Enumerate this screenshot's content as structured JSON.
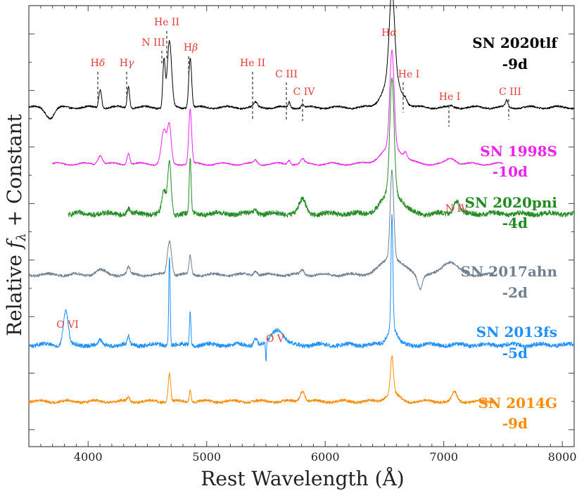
{
  "chart_data": {
    "type": "line",
    "xlabel": "Rest Wavelength (Å)",
    "ylabel": "Relative fλ + Constant",
    "xlim": [
      3500,
      8100
    ],
    "xticks": [
      4000,
      5000,
      6000,
      7000,
      8000
    ],
    "xticklabels": [
      "4000",
      "5000",
      "6000",
      "7000",
      "8000"
    ],
    "series": [
      {
        "name": "SN 2020tlf",
        "phase": "-9d",
        "color": "#000000",
        "x_range": [
          3500,
          8100
        ],
        "baseline": 1.65,
        "noise": 0.008,
        "amp": 1.0,
        "lines": [
          {
            "w": 3680,
            "a": -0.09,
            "s": 35
          },
          {
            "w": 4102,
            "a": 0.16,
            "s": 12
          },
          {
            "w": 4340,
            "a": 0.19,
            "s": 10
          },
          {
            "w": 4640,
            "a": 0.42,
            "s": 10
          },
          {
            "w": 4686,
            "a": 0.58,
            "s": 18
          },
          {
            "w": 4861,
            "a": 0.44,
            "s": 12
          },
          {
            "w": 5411,
            "a": 0.04,
            "s": 15
          },
          {
            "w": 5696,
            "a": 0.05,
            "s": 8
          },
          {
            "w": 5808,
            "a": 0.03,
            "s": 10
          },
          {
            "w": 6563,
            "a": 0.75,
            "s": 22
          },
          {
            "w": 6563,
            "a": 0.28,
            "s": 70
          },
          {
            "w": 6678,
            "a": 0.03,
            "s": 10
          },
          {
            "w": 7065,
            "a": 0.01,
            "s": 10
          },
          {
            "w": 7530,
            "a": 0.06,
            "s": 10
          }
        ]
      },
      {
        "name": "SN 1998S",
        "phase": "-10d",
        "color": "#ee22ee",
        "x_range": [
          3700,
          7500
        ],
        "baseline": 1.15,
        "noise": 0.006,
        "amp": 1.0,
        "lines": [
          {
            "w": 4102,
            "a": 0.08,
            "s": 20
          },
          {
            "w": 4340,
            "a": 0.1,
            "s": 12
          },
          {
            "w": 4640,
            "a": 0.3,
            "s": 22
          },
          {
            "w": 4686,
            "a": 0.32,
            "s": 15
          },
          {
            "w": 4861,
            "a": 0.48,
            "s": 12
          },
          {
            "w": 5411,
            "a": 0.03,
            "s": 15
          },
          {
            "w": 5696,
            "a": 0.04,
            "s": 12
          },
          {
            "w": 5808,
            "a": 0.04,
            "s": 15
          },
          {
            "w": 6563,
            "a": 0.85,
            "s": 18
          },
          {
            "w": 6563,
            "a": 0.15,
            "s": 90
          },
          {
            "w": 6678,
            "a": 0.05,
            "s": 12
          },
          {
            "w": 7065,
            "a": 0.05,
            "s": 40
          }
        ]
      },
      {
        "name": "SN 2020pni",
        "phase": "-4d",
        "color": "#228b22",
        "x_range": [
          3830,
          8100
        ],
        "baseline": 0.71,
        "noise": 0.022,
        "amp": 1.0,
        "lines": [
          {
            "w": 4340,
            "a": 0.05,
            "s": 12
          },
          {
            "w": 4640,
            "a": 0.2,
            "s": 18
          },
          {
            "w": 4686,
            "a": 0.45,
            "s": 14
          },
          {
            "w": 4861,
            "a": 0.48,
            "s": 8
          },
          {
            "w": 5411,
            "a": 0.04,
            "s": 15
          },
          {
            "w": 5808,
            "a": 0.12,
            "s": 30
          },
          {
            "w": 6563,
            "a": 1.0,
            "s": 18
          },
          {
            "w": 6563,
            "a": 0.2,
            "s": 80
          },
          {
            "w": 7109,
            "a": 0.12,
            "s": 25
          }
        ]
      },
      {
        "name": "SN 2017ahn",
        "phase": "-2d",
        "color": "#708090",
        "x_range": [
          3500,
          7420
        ],
        "baseline": 0.17,
        "noise": 0.012,
        "amp": 1.0,
        "lines": [
          {
            "w": 4102,
            "a": 0.04,
            "s": 40
          },
          {
            "w": 4340,
            "a": 0.07,
            "s": 12
          },
          {
            "w": 4686,
            "a": 0.3,
            "s": 18
          },
          {
            "w": 4861,
            "a": 0.16,
            "s": 10
          },
          {
            "w": 5411,
            "a": 0.04,
            "s": 15
          },
          {
            "w": 5808,
            "a": 0.04,
            "s": 15
          },
          {
            "w": 6563,
            "a": 0.78,
            "s": 15
          },
          {
            "w": 6563,
            "a": 0.15,
            "s": 90
          },
          {
            "w": 6800,
            "a": -0.12,
            "s": 20
          },
          {
            "w": 7050,
            "a": 0.12,
            "s": 60
          }
        ]
      },
      {
        "name": "SN 2013fs",
        "phase": "-5d",
        "color": "#1e90ff",
        "x_range": [
          3500,
          8100
        ],
        "baseline": -0.45,
        "noise": 0.018,
        "amp": 1.0,
        "lines": [
          {
            "w": 3811,
            "a": 0.3,
            "s": 20
          },
          {
            "w": 4102,
            "a": 0.04,
            "s": 10
          },
          {
            "w": 4340,
            "a": 0.07,
            "s": 10
          },
          {
            "w": 4686,
            "a": 0.8,
            "s": 6
          },
          {
            "w": 4861,
            "a": 0.3,
            "s": 6
          },
          {
            "w": 5411,
            "a": 0.06,
            "s": 15
          },
          {
            "w": 5597,
            "a": 0.14,
            "s": 50
          },
          {
            "w": 5500,
            "a": -0.18,
            "s": 4
          },
          {
            "w": 6563,
            "a": 1.0,
            "s": 8
          },
          {
            "w": 6563,
            "a": 0.15,
            "s": 40
          }
        ]
      },
      {
        "name": "SN 2014G",
        "phase": "-9d",
        "color": "#ff8c00",
        "x_range": [
          3500,
          7420
        ],
        "baseline": -0.95,
        "noise": 0.012,
        "amp": 1.0,
        "lines": [
          {
            "w": 4340,
            "a": 0.04,
            "s": 10
          },
          {
            "w": 4686,
            "a": 0.25,
            "s": 10
          },
          {
            "w": 4861,
            "a": 0.1,
            "s": 8
          },
          {
            "w": 5808,
            "a": 0.1,
            "s": 20
          },
          {
            "w": 6563,
            "a": 0.32,
            "s": 12
          },
          {
            "w": 6563,
            "a": 0.08,
            "s": 50
          },
          {
            "w": 7090,
            "a": 0.08,
            "s": 20
          }
        ]
      }
    ]
  },
  "labels": {
    "line_ids": [
      {
        "text": "Hδ",
        "w": 4102
      },
      {
        "text": "Hγ",
        "w": 4340
      },
      {
        "text": "N III",
        "w": 4640
      },
      {
        "text": "He II",
        "w": 4686
      },
      {
        "text": "Hβ",
        "w": 4861
      },
      {
        "text": "He II",
        "w": 5411
      },
      {
        "text": "C III",
        "w": 5696
      },
      {
        "text": "C IV",
        "w": 5808
      },
      {
        "text": "Hα",
        "w": 6563
      },
      {
        "text": "He I",
        "w": 6678
      },
      {
        "text": "He I",
        "w": 7065
      },
      {
        "text": "C III",
        "w": 7530
      },
      {
        "text": "N IV",
        "w": 7109
      },
      {
        "text": "O VI",
        "w": 3811
      },
      {
        "text": "O V",
        "w": 5597
      }
    ],
    "colors": {
      "line_id": "#e53935",
      "marker": "#555555"
    }
  }
}
